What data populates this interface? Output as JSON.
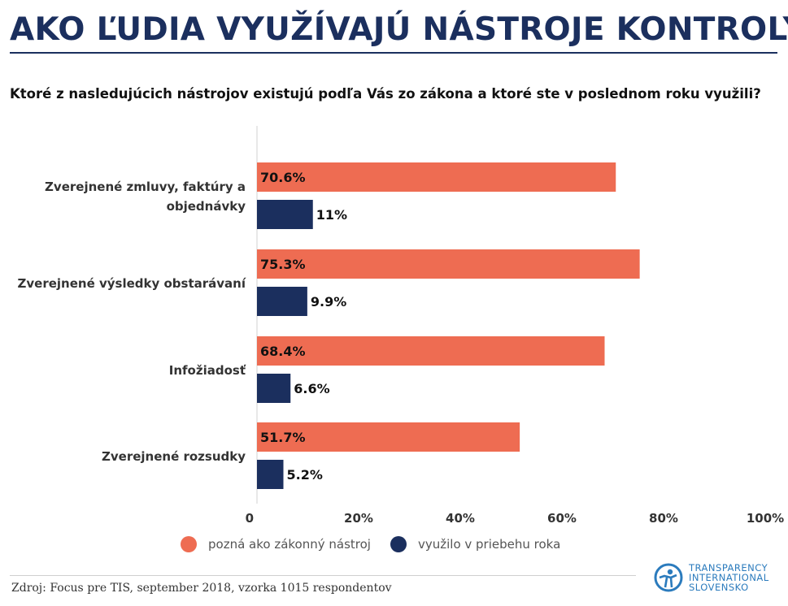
{
  "title": "AKO ĽUDIA VYUŽÍVAJÚ NÁSTROJE KONTROLY?",
  "subtitle": "Ktoré z nasledujúcich nástrojov existujú podľa Vás zo zákona a ktoré ste v poslednom roku využili?",
  "source": "Zdroj: Focus pre TIS, september 2018, vzorka 1015 respondentov",
  "logo": {
    "lines": [
      "TRANSPARENCY",
      "INTERNATIONAL",
      "SLOVENSKO"
    ]
  },
  "colors": {
    "known": "#ee6c52",
    "used": "#1b2f5e"
  },
  "chart_data": {
    "type": "bar",
    "orientation": "horizontal",
    "categories": [
      [
        "Zverejnené zmluvy, faktúry a",
        "objednávky"
      ],
      [
        "Zverejnené výsledky obstarávaní"
      ],
      [
        "Infožiadosť"
      ],
      [
        "Zverejnené rozsudky"
      ]
    ],
    "series": [
      {
        "name": "pozná ako zákonný nástroj",
        "values": [
          70.6,
          75.3,
          68.4,
          51.7
        ],
        "labels": [
          "70.6%",
          "75.3%",
          "68.4%",
          "51.7%"
        ]
      },
      {
        "name": "využilo v priebehu roka",
        "values": [
          11,
          9.9,
          6.6,
          5.2
        ],
        "labels": [
          "11%",
          "9.9%",
          "6.6%",
          "5.2%"
        ]
      }
    ],
    "xlim": [
      0,
      100
    ],
    "xticks": [
      0,
      20,
      40,
      60,
      80,
      100
    ],
    "xtick_labels": [
      "0",
      "20%",
      "40%",
      "60%",
      "80%",
      "100%"
    ],
    "legend_position": "bottom"
  }
}
